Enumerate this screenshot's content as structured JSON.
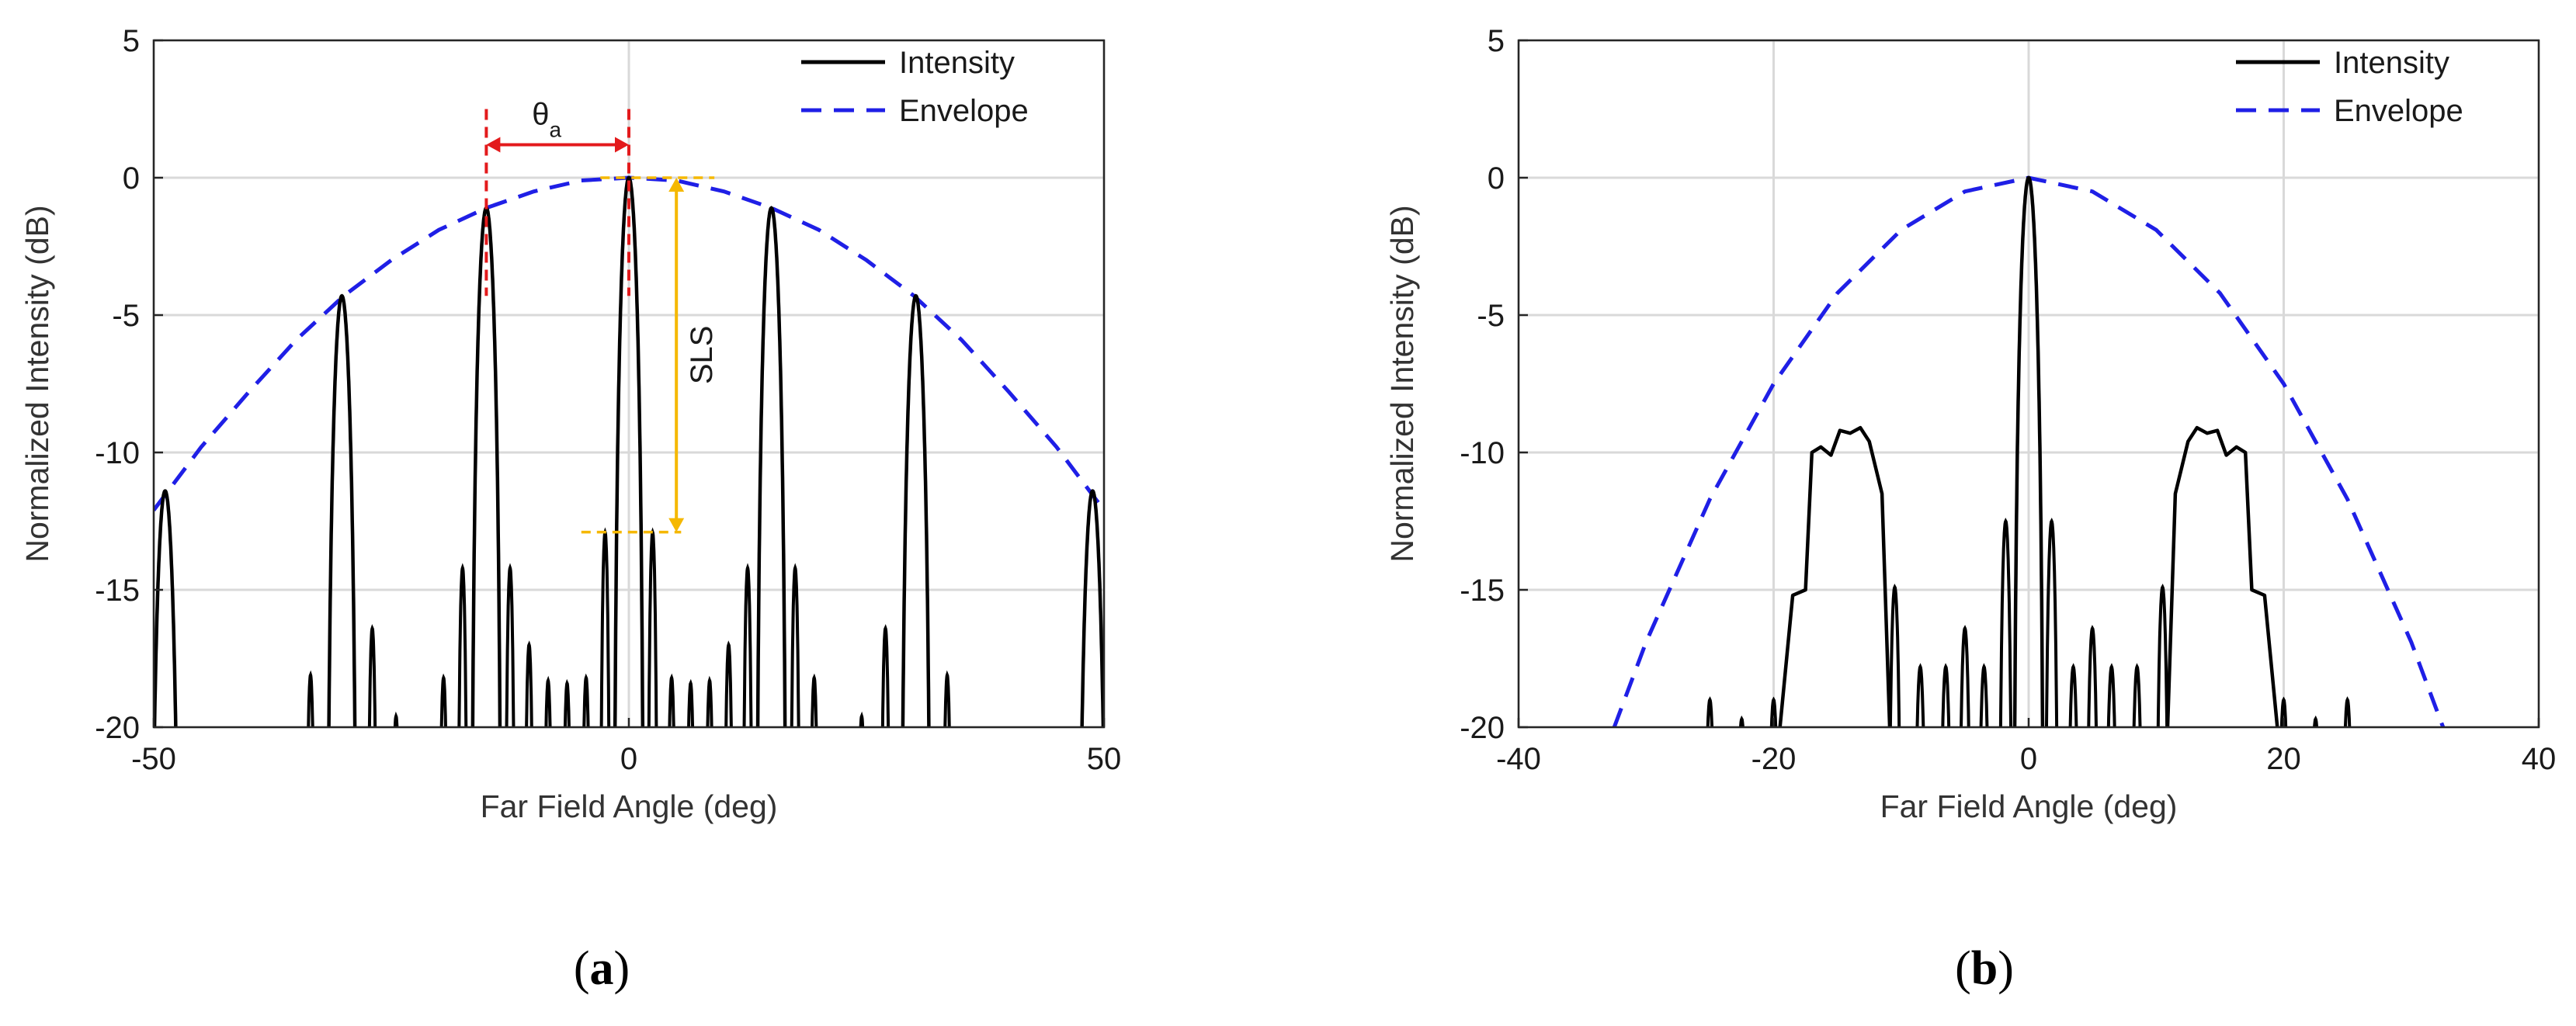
{
  "chart_data": [
    {
      "id": "a",
      "type": "line",
      "panel_label": "a",
      "xlabel": "Far Field Angle (deg)",
      "ylabel": "Normalized Intensity (dB)",
      "xlim": [
        -50,
        50
      ],
      "ylim": [
        -20,
        5
      ],
      "xticks": [
        -50,
        0,
        50
      ],
      "yticks": [
        5,
        0,
        -5,
        -10,
        -15,
        -20
      ],
      "xtick_labels": [
        "-50",
        "0",
        "50"
      ],
      "ytick_labels": [
        "5",
        "0",
        "-5",
        "-10",
        "-15",
        "-20"
      ],
      "grid": true,
      "legend": {
        "position": "top-right",
        "entries": [
          "Intensity",
          "Envelope"
        ]
      },
      "series": [
        {
          "name": "Envelope",
          "style": "dashed",
          "color": "#1f1fe6",
          "x": [
            -50,
            -45,
            -40,
            -35,
            -30,
            -25,
            -20,
            -15,
            -10,
            -5,
            0,
            5,
            10,
            15,
            20,
            25,
            30,
            35,
            40,
            45,
            50
          ],
          "y": [
            -12.1,
            -9.8,
            -7.8,
            -5.9,
            -4.3,
            -3.0,
            -1.9,
            -1.1,
            -0.5,
            -0.1,
            0,
            -0.1,
            -0.5,
            -1.1,
            -1.9,
            -3.0,
            -4.3,
            -5.9,
            -7.8,
            -9.8,
            -12.1
          ]
        },
        {
          "name": "Intensity",
          "style": "solid",
          "color": "#000000",
          "main_lobes": [
            {
              "x": -48.8,
              "peak": -11.4,
              "width": 1.6
            },
            {
              "x": -30.2,
              "peak": -4.3,
              "width": 1.6
            },
            {
              "x": -15.0,
              "peak": -1.1,
              "width": 1.6
            },
            {
              "x": 0.0,
              "peak": 0.0,
              "width": 1.6
            },
            {
              "x": 15.0,
              "peak": -1.1,
              "width": 1.6
            },
            {
              "x": 30.2,
              "peak": -4.3,
              "width": 1.6
            },
            {
              "x": 48.8,
              "peak": -11.4,
              "width": 1.6
            }
          ],
          "side_lobes": [
            {
              "x": -33.5,
              "peak": -18.1
            },
            {
              "x": -27.0,
              "peak": -16.4
            },
            {
              "x": -24.5,
              "peak": -19.6
            },
            {
              "x": -19.5,
              "peak": -18.2
            },
            {
              "x": -17.5,
              "peak": -14.2
            },
            {
              "x": -12.5,
              "peak": -14.2
            },
            {
              "x": -10.5,
              "peak": -17.0
            },
            {
              "x": -8.5,
              "peak": -18.3
            },
            {
              "x": -6.5,
              "peak": -18.4
            },
            {
              "x": -4.5,
              "peak": -18.2
            },
            {
              "x": -2.5,
              "peak": -12.9
            },
            {
              "x": 2.5,
              "peak": -12.9
            },
            {
              "x": 4.5,
              "peak": -18.2
            },
            {
              "x": 6.5,
              "peak": -18.4
            },
            {
              "x": 8.5,
              "peak": -18.3
            },
            {
              "x": 10.5,
              "peak": -17.0
            },
            {
              "x": 12.5,
              "peak": -14.2
            },
            {
              "x": 17.5,
              "peak": -14.2
            },
            {
              "x": 19.5,
              "peak": -18.2
            },
            {
              "x": 24.5,
              "peak": -19.6
            },
            {
              "x": 27.0,
              "peak": -16.4
            },
            {
              "x": 33.5,
              "peak": -18.1
            }
          ]
        }
      ],
      "annotations": [
        {
          "name": "theta-a",
          "text": "θ",
          "subscript": "a",
          "x_from": -15,
          "x_to": 0,
          "y": 1.2,
          "color": "#e31a1c"
        },
        {
          "name": "sls",
          "text": "SLS",
          "x": 5,
          "y_from": 0,
          "y_to": -12.9,
          "color": "#f5b800"
        }
      ]
    },
    {
      "id": "b",
      "type": "line",
      "panel_label": "b",
      "xlabel": "Far Field Angle (deg)",
      "ylabel": "Normalized Intensity (dB)",
      "xlim": [
        -40,
        40
      ],
      "ylim": [
        -20,
        5
      ],
      "xticks": [
        -40,
        -20,
        0,
        20,
        40
      ],
      "yticks": [
        5,
        0,
        -5,
        -10,
        -15,
        -20
      ],
      "xtick_labels": [
        "-40",
        "-20",
        "0",
        "20",
        "40"
      ],
      "ytick_labels": [
        "5",
        "0",
        "-5",
        "-10",
        "-15",
        "-20"
      ],
      "grid": true,
      "legend": {
        "position": "top-right",
        "entries": [
          "Intensity",
          "Envelope"
        ]
      },
      "series": [
        {
          "name": "Envelope",
          "style": "dashed",
          "color": "#1f1fe6",
          "x": [
            -32.5,
            -30,
            -25,
            -20,
            -15,
            -10,
            -5,
            0,
            5,
            10,
            15,
            20,
            25,
            30,
            32.5
          ],
          "y": [
            -20,
            -16.9,
            -11.7,
            -7.5,
            -4.2,
            -1.9,
            -0.5,
            0,
            -0.5,
            -1.9,
            -4.2,
            -7.5,
            -11.7,
            -16.9,
            -20
          ]
        },
        {
          "name": "Intensity",
          "style": "solid",
          "color": "#000000",
          "main_lobes": [
            {
              "x": 0.0,
              "peak": 0.0,
              "width": 1.2
            }
          ],
          "side_lobes": [
            {
              "x": -25.0,
              "peak": -19.0
            },
            {
              "x": -22.5,
              "peak": -19.7
            },
            {
              "x": -20.0,
              "peak": -19.0
            },
            {
              "x": -10.5,
              "peak": -14.9
            },
            {
              "x": -8.5,
              "peak": -17.8
            },
            {
              "x": -6.5,
              "peak": -17.8
            },
            {
              "x": -5.0,
              "peak": -16.4
            },
            {
              "x": -3.5,
              "peak": -17.8
            },
            {
              "x": -1.8,
              "peak": -12.5
            },
            {
              "x": 1.8,
              "peak": -12.5
            },
            {
              "x": 3.5,
              "peak": -17.8
            },
            {
              "x": 5.0,
              "peak": -16.4
            },
            {
              "x": 6.5,
              "peak": -17.8
            },
            {
              "x": 8.5,
              "peak": -17.8
            },
            {
              "x": 10.5,
              "peak": -14.9
            },
            {
              "x": 20.0,
              "peak": -19.0
            },
            {
              "x": 22.5,
              "peak": -19.7
            },
            {
              "x": 25.0,
              "peak": -19.0
            }
          ],
          "plateaus": [
            {
              "x": [
                -19.5,
                -18.5,
                -17.5,
                -17.0,
                -16.3,
                -15.5,
                -14.8,
                -14.0,
                -13.2,
                -12.5,
                -11.5,
                -10.9
              ],
              "y": [
                -20,
                -15.2,
                -15.0,
                -10.0,
                -9.8,
                -10.1,
                -9.2,
                -9.3,
                -9.1,
                -9.6,
                -11.5,
                -20
              ]
            },
            {
              "x": [
                10.9,
                11.5,
                12.5,
                13.2,
                14.0,
                14.8,
                15.5,
                16.3,
                17.0,
                17.5,
                18.5,
                19.5
              ],
              "y": [
                -20,
                -11.5,
                -9.6,
                -9.1,
                -9.3,
                -9.2,
                -10.1,
                -9.8,
                -10.0,
                -15.0,
                -15.2,
                -20
              ]
            }
          ]
        }
      ]
    }
  ]
}
